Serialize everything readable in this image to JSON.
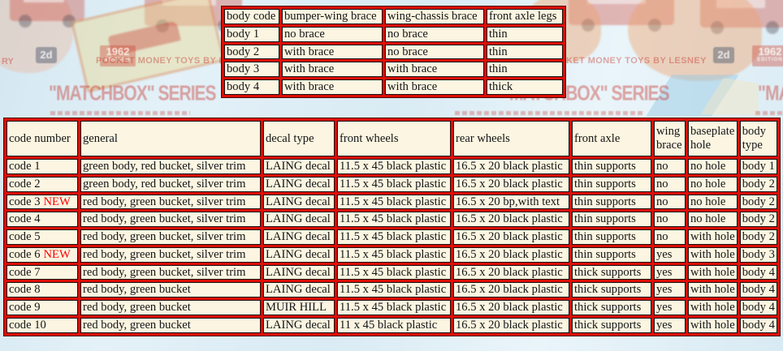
{
  "background": {
    "series_text": "\"MATCHBOX\" SERIES",
    "pocket_money_text": "POCKET MONEY TOYS BY LESNEY",
    "price_badge": "2d",
    "year_badge": "1962",
    "edition_label": "EDITION",
    "lesney_tail_fragment": "RY"
  },
  "body_code_table": {
    "headers": [
      "body code",
      "bumper-wing brace",
      "wing-chassis brace",
      "front axle legs"
    ],
    "rows": [
      [
        "body 1",
        "no brace",
        "no brace",
        "thin"
      ],
      [
        "body 2",
        "with brace",
        "no brace",
        "thin"
      ],
      [
        "body 3",
        "with brace",
        "with brace",
        "thin"
      ],
      [
        "body 4",
        "with brace",
        "with brace",
        "thick"
      ]
    ]
  },
  "code_table": {
    "headers": [
      "code number",
      "general",
      "decal type",
      "front wheels",
      "rear wheels",
      "front axle",
      "wing brace",
      "baseplate hole",
      "body type"
    ],
    "rows": [
      {
        "tag": "",
        "cells": [
          "code 1",
          "green body, red bucket, silver trim",
          "LAING decal",
          "11.5 x 45 black plastic",
          "16.5 x 20 black plastic",
          "thin supports",
          "no",
          "no hole",
          "body 1"
        ]
      },
      {
        "tag": "",
        "cells": [
          "code 2",
          "green body, red bucket, silver trim",
          "LAING decal",
          "11.5 x 45 black plastic",
          "16.5 x 20 black plastic",
          "thin supports",
          "no",
          "no hole",
          "body 2"
        ]
      },
      {
        "tag": "NEW",
        "cells": [
          "code 3",
          "red body, green bucket, silver trim",
          "LAING decal",
          "11.5 x 45 black plastic",
          "16.5 x 20 bp,with text",
          "thin supports",
          "no",
          "no hole",
          "body 2"
        ]
      },
      {
        "tag": "",
        "cells": [
          "code 4",
          "red body, green bucket, silver trim",
          "LAING decal",
          "11.5 x 45 black plastic",
          "16.5 x 20 black plastic",
          "thin supports",
          "no",
          "no hole",
          "body 2"
        ]
      },
      {
        "tag": "",
        "cells": [
          "code 5",
          "red body, green bucket, silver trim",
          "LAING decal",
          "11.5 x 45 black plastic",
          "16.5 x 20 black plastic",
          "thin supports",
          "no",
          "with hole",
          "body 2"
        ]
      },
      {
        "tag": "NEW",
        "cells": [
          "code 6",
          "red body, green bucket, silver trim",
          "LAING decal",
          "11.5 x 45 black plastic",
          "16.5 x 20 black plastic",
          "thin supports",
          "yes",
          "with hole",
          "body 3"
        ]
      },
      {
        "tag": "",
        "cells": [
          "code 7",
          "red body, green bucket, silver trim",
          "LAING decal",
          "11.5 x 45 black plastic",
          "16.5 x 20 black plastic",
          "thick supports",
          "yes",
          "with hole",
          "body 4"
        ]
      },
      {
        "tag": "",
        "cells": [
          "code 8",
          "red body, green bucket",
          "LAING decal",
          "11.5 x 45 black plastic",
          "16.5 x 20 black plastic",
          "thick supports",
          "yes",
          "with hole",
          "body 4"
        ]
      },
      {
        "tag": "",
        "cells": [
          "code 9",
          "red body, green bucket",
          "MUIR HILL",
          "11.5 x 45 black plastic",
          "16.5 x 20 black plastic",
          "thick supports",
          "yes",
          "with hole",
          "body 4"
        ]
      },
      {
        "tag": "",
        "cells": [
          "code 10",
          "red body, green bucket",
          "LAING decal",
          "11 x 45 black plastic",
          "16.5 x 20 black plastic",
          "thick supports",
          "yes",
          "with hole",
          "body 4"
        ]
      }
    ]
  },
  "colors": {
    "table_grid_red": "#dd0e05",
    "cell_background": "#fbf5e1",
    "new_label_red": "#ff0000",
    "cell_text": "#141414",
    "page_blue": "#d7eaf3"
  }
}
